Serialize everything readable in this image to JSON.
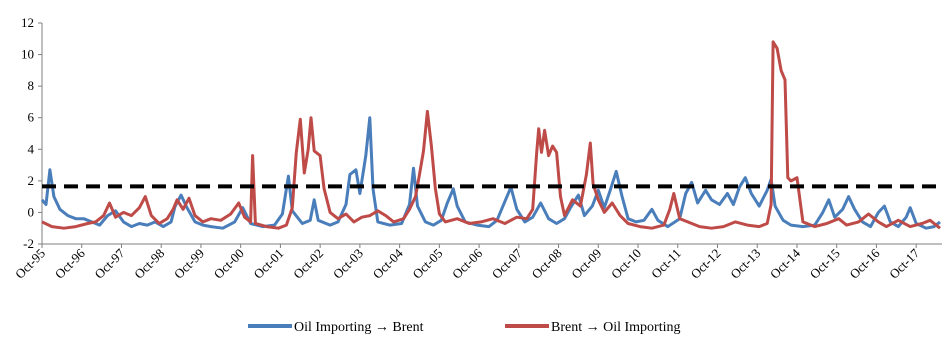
{
  "chart_data": {
    "type": "line",
    "title": "",
    "xlabel": "",
    "ylabel": "",
    "ylim": [
      -2,
      12
    ],
    "yticks": [
      "-2",
      "0",
      "2",
      "4",
      "6",
      "8",
      "10",
      "12"
    ],
    "x_tick_labels": [
      "Oct-95",
      "Oct-96",
      "Oct-97",
      "Oct-98",
      "Oct-99",
      "Oct-00",
      "Oct-01",
      "Oct-02",
      "Oct-03",
      "Oct-04",
      "Oct-05",
      "Oct-06",
      "Oct-07",
      "Oct-08",
      "Oct-09",
      "Oct-10",
      "Oct-11",
      "Oct-12",
      "Oct-13",
      "Oct-14",
      "Oct-15",
      "Oct-16",
      "Oct-17"
    ],
    "xlim": [
      1995.75,
      2018.4
    ],
    "threshold": {
      "value": 1.65,
      "style": "dashed",
      "color": "#000000"
    },
    "legend": {
      "position": "bottom"
    },
    "grid": false,
    "series": [
      {
        "name": "Oil Importing → Brent",
        "color": "#4a7ebb",
        "points": [
          [
            1995.75,
            0.8
          ],
          [
            1995.85,
            0.5
          ],
          [
            1995.95,
            2.7
          ],
          [
            1996.05,
            1.0
          ],
          [
            1996.2,
            0.2
          ],
          [
            1996.4,
            -0.2
          ],
          [
            1996.6,
            -0.4
          ],
          [
            1996.8,
            -0.4
          ],
          [
            1997.0,
            -0.6
          ],
          [
            1997.2,
            -0.8
          ],
          [
            1997.4,
            -0.2
          ],
          [
            1997.6,
            0.1
          ],
          [
            1997.8,
            -0.6
          ],
          [
            1998.0,
            -0.9
          ],
          [
            1998.2,
            -0.7
          ],
          [
            1998.4,
            -0.8
          ],
          [
            1998.6,
            -0.6
          ],
          [
            1998.8,
            -0.9
          ],
          [
            1999.0,
            -0.6
          ],
          [
            1999.1,
            0.4
          ],
          [
            1999.25,
            1.1
          ],
          [
            1999.4,
            0.3
          ],
          [
            1999.6,
            -0.6
          ],
          [
            1999.8,
            -0.8
          ],
          [
            2000.0,
            -0.9
          ],
          [
            2000.3,
            -1.0
          ],
          [
            2000.6,
            -0.6
          ],
          [
            2000.8,
            0.3
          ],
          [
            2001.0,
            -0.7
          ],
          [
            2001.3,
            -0.9
          ],
          [
            2001.6,
            -0.8
          ],
          [
            2001.8,
            -0.1
          ],
          [
            2001.95,
            2.3
          ],
          [
            2002.05,
            0.1
          ],
          [
            2002.3,
            -0.7
          ],
          [
            2002.5,
            -0.5
          ],
          [
            2002.6,
            0.8
          ],
          [
            2002.7,
            -0.5
          ],
          [
            2003.0,
            -0.8
          ],
          [
            2003.2,
            -0.6
          ],
          [
            2003.4,
            0.5
          ],
          [
            2003.5,
            2.4
          ],
          [
            2003.65,
            2.7
          ],
          [
            2003.75,
            1.2
          ],
          [
            2003.9,
            3.6
          ],
          [
            2004.0,
            6.0
          ],
          [
            2004.08,
            1.5
          ],
          [
            2004.2,
            -0.6
          ],
          [
            2004.5,
            -0.8
          ],
          [
            2004.8,
            -0.7
          ],
          [
            2005.0,
            0.5
          ],
          [
            2005.1,
            2.8
          ],
          [
            2005.2,
            0.4
          ],
          [
            2005.4,
            -0.6
          ],
          [
            2005.6,
            -0.8
          ],
          [
            2005.8,
            -0.5
          ],
          [
            2005.95,
            0.6
          ],
          [
            2006.1,
            1.5
          ],
          [
            2006.2,
            0.4
          ],
          [
            2006.4,
            -0.6
          ],
          [
            2006.7,
            -0.8
          ],
          [
            2007.0,
            -0.9
          ],
          [
            2007.2,
            -0.5
          ],
          [
            2007.4,
            0.7
          ],
          [
            2007.55,
            1.6
          ],
          [
            2007.7,
            0.2
          ],
          [
            2007.9,
            -0.6
          ],
          [
            2008.1,
            -0.3
          ],
          [
            2008.3,
            0.6
          ],
          [
            2008.5,
            -0.4
          ],
          [
            2008.7,
            -0.7
          ],
          [
            2008.9,
            -0.4
          ],
          [
            2009.05,
            0.3
          ],
          [
            2009.25,
            1.1
          ],
          [
            2009.4,
            -0.2
          ],
          [
            2009.6,
            0.4
          ],
          [
            2009.75,
            1.4
          ],
          [
            2009.9,
            0.3
          ],
          [
            2010.05,
            1.4
          ],
          [
            2010.2,
            2.6
          ],
          [
            2010.35,
            1.0
          ],
          [
            2010.5,
            -0.4
          ],
          [
            2010.7,
            -0.6
          ],
          [
            2010.9,
            -0.5
          ],
          [
            2011.1,
            0.2
          ],
          [
            2011.25,
            -0.5
          ],
          [
            2011.5,
            -0.9
          ],
          [
            2011.8,
            -0.4
          ],
          [
            2011.95,
            1.2
          ],
          [
            2012.1,
            1.9
          ],
          [
            2012.25,
            0.6
          ],
          [
            2012.45,
            1.4
          ],
          [
            2012.6,
            0.8
          ],
          [
            2012.8,
            0.5
          ],
          [
            2013.0,
            1.2
          ],
          [
            2013.15,
            0.5
          ],
          [
            2013.3,
            1.6
          ],
          [
            2013.45,
            2.2
          ],
          [
            2013.6,
            1.2
          ],
          [
            2013.8,
            0.4
          ],
          [
            2014.0,
            1.4
          ],
          [
            2014.1,
            2.1
          ],
          [
            2014.2,
            0.4
          ],
          [
            2014.4,
            -0.5
          ],
          [
            2014.6,
            -0.8
          ],
          [
            2014.9,
            -0.9
          ],
          [
            2015.2,
            -0.8
          ],
          [
            2015.4,
            0.0
          ],
          [
            2015.55,
            0.8
          ],
          [
            2015.7,
            -0.3
          ],
          [
            2015.9,
            0.2
          ],
          [
            2016.05,
            1.0
          ],
          [
            2016.2,
            0.2
          ],
          [
            2016.4,
            -0.6
          ],
          [
            2016.6,
            -0.9
          ],
          [
            2016.8,
            0.0
          ],
          [
            2016.95,
            0.4
          ],
          [
            2017.1,
            -0.6
          ],
          [
            2017.3,
            -0.9
          ],
          [
            2017.5,
            -0.3
          ],
          [
            2017.6,
            0.3
          ],
          [
            2017.75,
            -0.7
          ],
          [
            2018.0,
            -1.0
          ],
          [
            2018.2,
            -0.9
          ],
          [
            2018.35,
            -0.6
          ]
        ]
      },
      {
        "name": "Brent → Oil Importing",
        "color": "#be4b48",
        "points": [
          [
            1995.75,
            -0.6
          ],
          [
            1996.0,
            -0.9
          ],
          [
            1996.3,
            -1.0
          ],
          [
            1996.6,
            -0.9
          ],
          [
            1996.9,
            -0.7
          ],
          [
            1997.1,
            -0.6
          ],
          [
            1997.3,
            -0.2
          ],
          [
            1997.45,
            0.6
          ],
          [
            1997.6,
            -0.3
          ],
          [
            1997.8,
            0.0
          ],
          [
            1998.0,
            -0.2
          ],
          [
            1998.2,
            0.3
          ],
          [
            1998.35,
            1.0
          ],
          [
            1998.5,
            -0.2
          ],
          [
            1998.7,
            -0.7
          ],
          [
            1998.9,
            -0.4
          ],
          [
            1999.05,
            0.2
          ],
          [
            1999.15,
            0.8
          ],
          [
            1999.3,
            0.2
          ],
          [
            1999.45,
            0.9
          ],
          [
            1999.6,
            -0.2
          ],
          [
            1999.8,
            -0.6
          ],
          [
            2000.0,
            -0.4
          ],
          [
            2000.25,
            -0.5
          ],
          [
            2000.5,
            -0.1
          ],
          [
            2000.7,
            0.6
          ],
          [
            2000.85,
            -0.3
          ],
          [
            2001.0,
            -0.6
          ],
          [
            2001.05,
            3.6
          ],
          [
            2001.12,
            -0.7
          ],
          [
            2001.4,
            -0.9
          ],
          [
            2001.7,
            -1.0
          ],
          [
            2001.9,
            -0.8
          ],
          [
            2002.05,
            0.3
          ],
          [
            2002.15,
            3.8
          ],
          [
            2002.25,
            5.9
          ],
          [
            2002.35,
            2.5
          ],
          [
            2002.45,
            4.0
          ],
          [
            2002.52,
            6.0
          ],
          [
            2002.6,
            3.9
          ],
          [
            2002.75,
            3.6
          ],
          [
            2002.85,
            1.5
          ],
          [
            2003.0,
            0.0
          ],
          [
            2003.2,
            -0.4
          ],
          [
            2003.4,
            -0.1
          ],
          [
            2003.6,
            -0.6
          ],
          [
            2003.8,
            -0.3
          ],
          [
            2004.0,
            -0.2
          ],
          [
            2004.2,
            0.1
          ],
          [
            2004.4,
            -0.2
          ],
          [
            2004.6,
            -0.6
          ],
          [
            2004.85,
            -0.4
          ],
          [
            2005.0,
            0.2
          ],
          [
            2005.15,
            1.0
          ],
          [
            2005.25,
            2.4
          ],
          [
            2005.35,
            3.9
          ],
          [
            2005.45,
            6.4
          ],
          [
            2005.55,
            4.2
          ],
          [
            2005.65,
            1.5
          ],
          [
            2005.75,
            -0.1
          ],
          [
            2005.9,
            -0.6
          ],
          [
            2006.2,
            -0.4
          ],
          [
            2006.5,
            -0.7
          ],
          [
            2006.8,
            -0.6
          ],
          [
            2007.1,
            -0.4
          ],
          [
            2007.4,
            -0.7
          ],
          [
            2007.7,
            -0.3
          ],
          [
            2007.95,
            -0.4
          ],
          [
            2008.1,
            0.2
          ],
          [
            2008.2,
            3.8
          ],
          [
            2008.25,
            5.3
          ],
          [
            2008.32,
            3.8
          ],
          [
            2008.4,
            5.2
          ],
          [
            2008.5,
            3.6
          ],
          [
            2008.6,
            4.2
          ],
          [
            2008.7,
            3.8
          ],
          [
            2008.8,
            1.0
          ],
          [
            2008.9,
            -0.2
          ],
          [
            2009.1,
            0.8
          ],
          [
            2009.3,
            0.4
          ],
          [
            2009.45,
            2.4
          ],
          [
            2009.55,
            4.4
          ],
          [
            2009.62,
            1.8
          ],
          [
            2009.75,
            0.8
          ],
          [
            2009.9,
            0.0
          ],
          [
            2010.1,
            0.6
          ],
          [
            2010.3,
            -0.2
          ],
          [
            2010.5,
            -0.7
          ],
          [
            2010.8,
            -0.9
          ],
          [
            2011.1,
            -1.0
          ],
          [
            2011.4,
            -0.8
          ],
          [
            2011.55,
            0.2
          ],
          [
            2011.65,
            1.2
          ],
          [
            2011.8,
            -0.4
          ],
          [
            2012.0,
            -0.6
          ],
          [
            2012.3,
            -0.9
          ],
          [
            2012.6,
            -1.0
          ],
          [
            2012.9,
            -0.9
          ],
          [
            2013.2,
            -0.6
          ],
          [
            2013.5,
            -0.8
          ],
          [
            2013.8,
            -0.9
          ],
          [
            2014.0,
            -0.7
          ],
          [
            2014.1,
            0.5
          ],
          [
            2014.15,
            10.8
          ],
          [
            2014.25,
            10.4
          ],
          [
            2014.35,
            9.0
          ],
          [
            2014.45,
            8.4
          ],
          [
            2014.52,
            2.2
          ],
          [
            2014.6,
            2.0
          ],
          [
            2014.75,
            2.2
          ],
          [
            2014.9,
            -0.6
          ],
          [
            2015.2,
            -0.9
          ],
          [
            2015.5,
            -0.7
          ],
          [
            2015.8,
            -0.4
          ],
          [
            2016.0,
            -0.8
          ],
          [
            2016.3,
            -0.6
          ],
          [
            2016.55,
            -0.1
          ],
          [
            2016.8,
            -0.6
          ],
          [
            2017.0,
            -0.9
          ],
          [
            2017.3,
            -0.5
          ],
          [
            2017.6,
            -0.9
          ],
          [
            2017.9,
            -0.7
          ],
          [
            2018.1,
            -0.5
          ],
          [
            2018.35,
            -1.0
          ]
        ]
      }
    ]
  }
}
